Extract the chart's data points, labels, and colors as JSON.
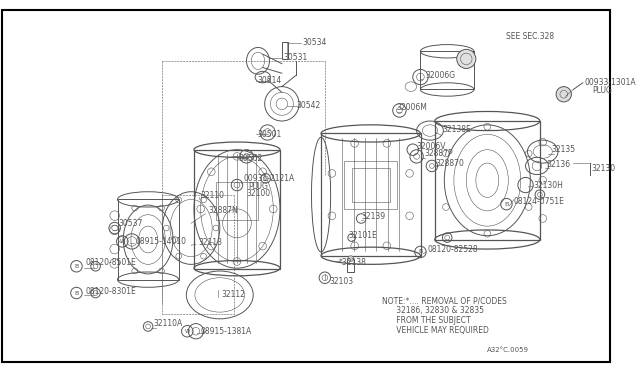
{
  "bg_color": "#ffffff",
  "border_color": "#000000",
  "line_color": "#555555",
  "text_color": "#555555",
  "fig_width": 6.4,
  "fig_height": 3.72,
  "dpi": 100,
  "note_line1": "NOTE:*.... REMOVAL OF P/CODES",
  "note_line2": "      32186, 32830 & 32835",
  "note_line3": "      FROM THE SUBJECT",
  "note_line4": "      VEHICLE MAY REQUIRED",
  "ref_code": "A32°C.0059",
  "see_sec": "SEE SEC.328"
}
